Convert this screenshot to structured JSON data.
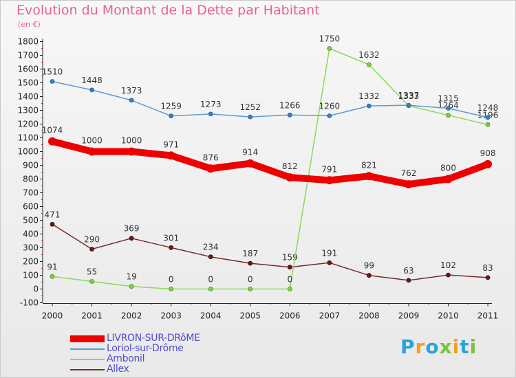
{
  "title": "Evolution du Montant de la Dette par Habitant",
  "subtitle": "(en €)",
  "logo": {
    "letters": [
      "P",
      "r",
      "o",
      "x",
      "i",
      "t",
      "i"
    ],
    "colors": [
      "#2aa3d9",
      "#f0a01e",
      "#2aa3d9",
      "#7cc23c",
      "#f0a01e",
      "#2aa3d9",
      "#7cc23c"
    ]
  },
  "chart_data": {
    "type": "line",
    "title": "Evolution du Montant de la Dette par Habitant",
    "xlabel": "",
    "ylabel": "(en €)",
    "x": [
      "2000",
      "2001",
      "2002",
      "2003",
      "2004",
      "2005",
      "2006",
      "2007",
      "2008",
      "2009",
      "2010",
      "2011"
    ],
    "ylim": [
      -100,
      1800
    ],
    "yticks": [
      -100,
      0,
      100,
      200,
      300,
      400,
      500,
      600,
      700,
      800,
      900,
      1000,
      1100,
      1200,
      1300,
      1400,
      1500,
      1600,
      1700,
      1800
    ],
    "grid": false,
    "legend_position": "bottom-left",
    "series": [
      {
        "name": "LIVRON-SUR-DRôME",
        "color": "#ee0000",
        "values": [
          1074,
          1000,
          1000,
          971,
          876,
          914,
          812,
          791,
          821,
          762,
          800,
          908
        ],
        "labels": [
          "1074",
          "1000",
          "1000",
          "971",
          "876",
          "914",
          "812",
          "791",
          "821",
          "762",
          "800",
          "908"
        ]
      },
      {
        "name": "Loriol-sur-Drôme",
        "color": "#5b9bd5",
        "values": [
          1510,
          1448,
          1373,
          1259,
          1273,
          1252,
          1266,
          1260,
          1332,
          1337,
          1315,
          1248
        ],
        "labels": [
          "1510",
          "1448",
          "1373",
          "1259",
          "1273",
          "1252",
          "1266",
          "1260",
          "1332",
          "1337",
          "1315",
          "1248"
        ]
      },
      {
        "name": "Ambonil",
        "color": "#8fd659",
        "values": [
          91,
          55,
          19,
          0,
          0,
          0,
          0,
          1750,
          1632,
          1333,
          1264,
          1196
        ],
        "labels": [
          "91",
          "55",
          "19",
          "0",
          "0",
          "0",
          "0",
          "1750",
          "1632",
          "1333",
          "1264",
          "1196"
        ]
      },
      {
        "name": "Allex",
        "color": "#7a2a2a",
        "values": [
          471,
          290,
          369,
          301,
          234,
          187,
          159,
          191,
          99,
          63,
          102,
          83
        ],
        "labels": [
          "471",
          "290",
          "369",
          "301",
          "234",
          "187",
          "159",
          "191",
          "99",
          "63",
          "102",
          "83"
        ]
      }
    ]
  }
}
